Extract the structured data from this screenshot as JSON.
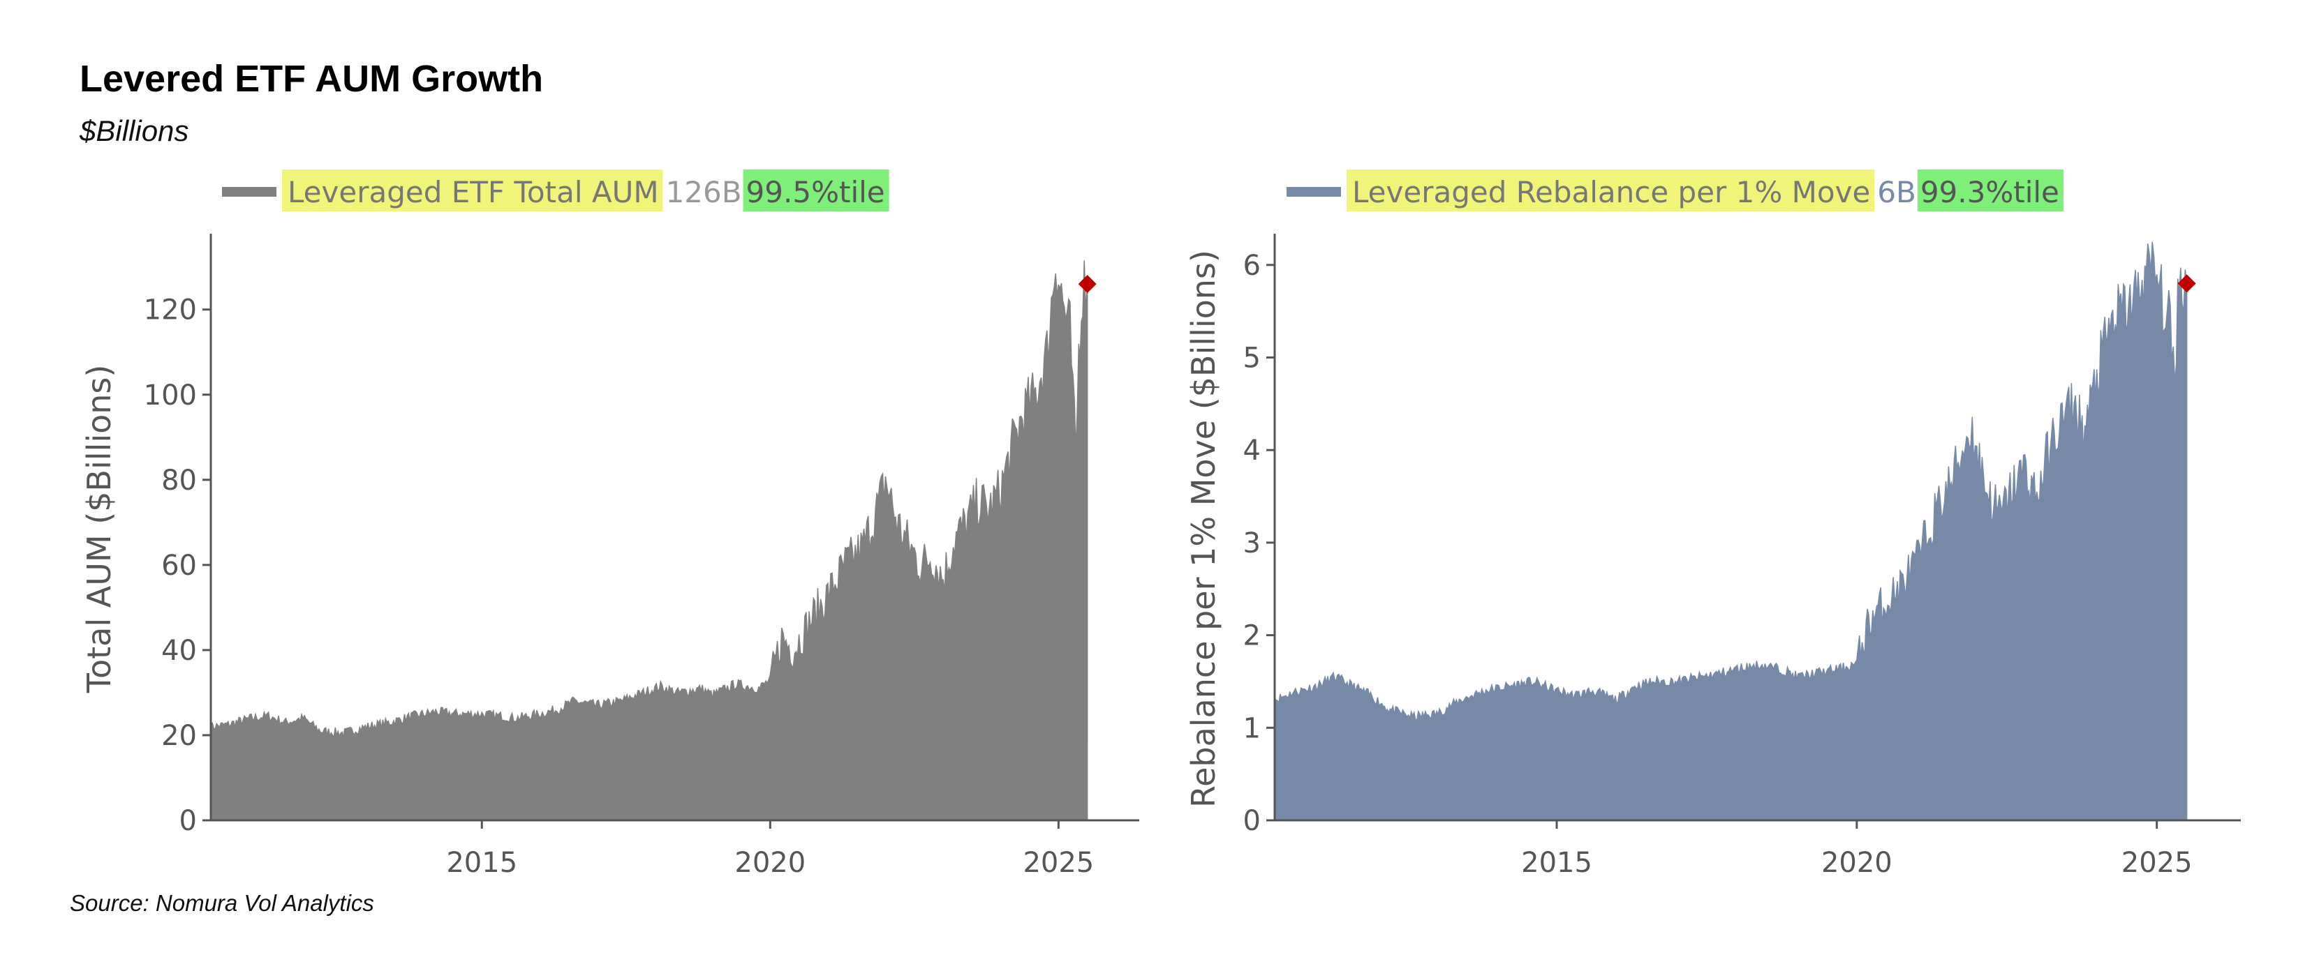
{
  "header": {
    "title": "Levered ETF AUM Growth",
    "subtitle": "$Billions"
  },
  "footer": {
    "source": "Source: Nomura Vol Analytics"
  },
  "colors": {
    "aum_series": "#808080",
    "rebalance_series": "#7689a7",
    "latest_marker": "#c00000",
    "legend_highlight": "#f0f57a",
    "percentile_highlight": "#7ef07a",
    "axis": "#555555"
  },
  "chart_data": [
    {
      "type": "area",
      "legend": {
        "label": "Leveraged ETF Total AUM",
        "value": "126B",
        "percentile": "99.5%tile",
        "placement": "top-left"
      },
      "xlabel": "",
      "ylabel": "Total AUM ($Billions)",
      "xlim": [
        2010.3,
        2026.4
      ],
      "ylim": [
        0,
        137
      ],
      "xticks": [
        2015,
        2020,
        2025
      ],
      "yticks": [
        0,
        20,
        40,
        60,
        80,
        100,
        120
      ],
      "grid": false,
      "series": [
        {
          "name": "Leveraged ETF Total AUM",
          "x": [
            2010.3,
            2010.6,
            2011.0,
            2011.3,
            2011.6,
            2011.9,
            2012.2,
            2012.6,
            2013.0,
            2013.4,
            2013.8,
            2014.2,
            2014.6,
            2015.0,
            2015.3,
            2015.6,
            2016.0,
            2016.3,
            2016.6,
            2017.0,
            2017.4,
            2017.8,
            2018.1,
            2018.4,
            2018.8,
            2019.0,
            2019.4,
            2019.8,
            2020.0,
            2020.2,
            2020.4,
            2020.7,
            2021.0,
            2021.3,
            2021.6,
            2021.9,
            2022.0,
            2022.2,
            2022.4,
            2022.6,
            2022.8,
            2023.0,
            2023.2,
            2023.4,
            2023.6,
            2023.8,
            2024.0,
            2024.2,
            2024.4,
            2024.6,
            2024.8,
            2024.95,
            2025.1,
            2025.2,
            2025.3,
            2025.35,
            2025.42,
            2025.5
          ],
          "y": [
            22,
            22.5,
            24,
            24.5,
            23,
            24,
            21,
            20.5,
            22,
            23,
            24.5,
            25.5,
            25,
            25,
            24.5,
            24,
            25,
            26,
            28,
            27,
            28,
            30,
            31.5,
            30,
            31,
            29.5,
            32,
            31,
            33,
            43,
            40,
            47,
            53,
            60,
            64,
            75,
            80,
            70,
            65,
            60,
            62,
            57,
            66,
            70,
            75,
            73,
            78,
            88,
            96,
            100,
            110,
            132,
            120,
            115,
            85,
            110,
            126,
            126
          ]
        }
      ],
      "latest_marker": {
        "x": 2025.5,
        "y": 126
      }
    },
    {
      "type": "area",
      "legend": {
        "label": "Leveraged Rebalance per 1% Move",
        "value": "6B",
        "percentile": "99.3%tile",
        "placement": "top-left"
      },
      "xlabel": "",
      "ylabel": "Rebalance per 1% Move ($Billions)",
      "xlim": [
        2010.3,
        2026.4
      ],
      "ylim": [
        0,
        6.3
      ],
      "xticks": [
        2015,
        2020,
        2025
      ],
      "yticks": [
        0,
        1,
        2,
        3,
        4,
        5,
        6
      ],
      "grid": false,
      "series": [
        {
          "name": "Leveraged Rebalance per 1% Move",
          "x": [
            2010.3,
            2010.6,
            2011.0,
            2011.3,
            2011.6,
            2011.9,
            2012.2,
            2012.6,
            2013.0,
            2013.4,
            2013.8,
            2014.2,
            2014.6,
            2015.0,
            2015.3,
            2015.6,
            2016.0,
            2016.3,
            2016.6,
            2017.0,
            2017.4,
            2017.8,
            2018.1,
            2018.4,
            2018.8,
            2019.0,
            2019.4,
            2019.8,
            2020.0,
            2020.2,
            2020.4,
            2020.7,
            2021.0,
            2021.3,
            2021.6,
            2021.9,
            2022.0,
            2022.2,
            2022.4,
            2022.6,
            2022.8,
            2023.0,
            2023.2,
            2023.4,
            2023.6,
            2023.8,
            2024.0,
            2024.2,
            2024.4,
            2024.6,
            2024.8,
            2024.95,
            2025.1,
            2025.2,
            2025.3,
            2025.35,
            2025.42,
            2025.5
          ],
          "y": [
            1.3,
            1.38,
            1.45,
            1.55,
            1.45,
            1.35,
            1.2,
            1.12,
            1.15,
            1.3,
            1.4,
            1.45,
            1.5,
            1.4,
            1.35,
            1.4,
            1.3,
            1.45,
            1.5,
            1.5,
            1.55,
            1.6,
            1.65,
            1.68,
            1.62,
            1.55,
            1.6,
            1.65,
            1.7,
            2.15,
            2.3,
            2.5,
            2.8,
            3.3,
            3.7,
            4.25,
            4.0,
            3.5,
            3.3,
            3.6,
            3.8,
            3.5,
            4.0,
            4.3,
            4.5,
            4.2,
            4.8,
            5.3,
            5.5,
            5.6,
            5.9,
            6.0,
            5.6,
            5.4,
            4.8,
            5.7,
            5.8,
            5.8
          ]
        }
      ],
      "latest_marker": {
        "x": 2025.5,
        "y": 5.8
      }
    }
  ]
}
